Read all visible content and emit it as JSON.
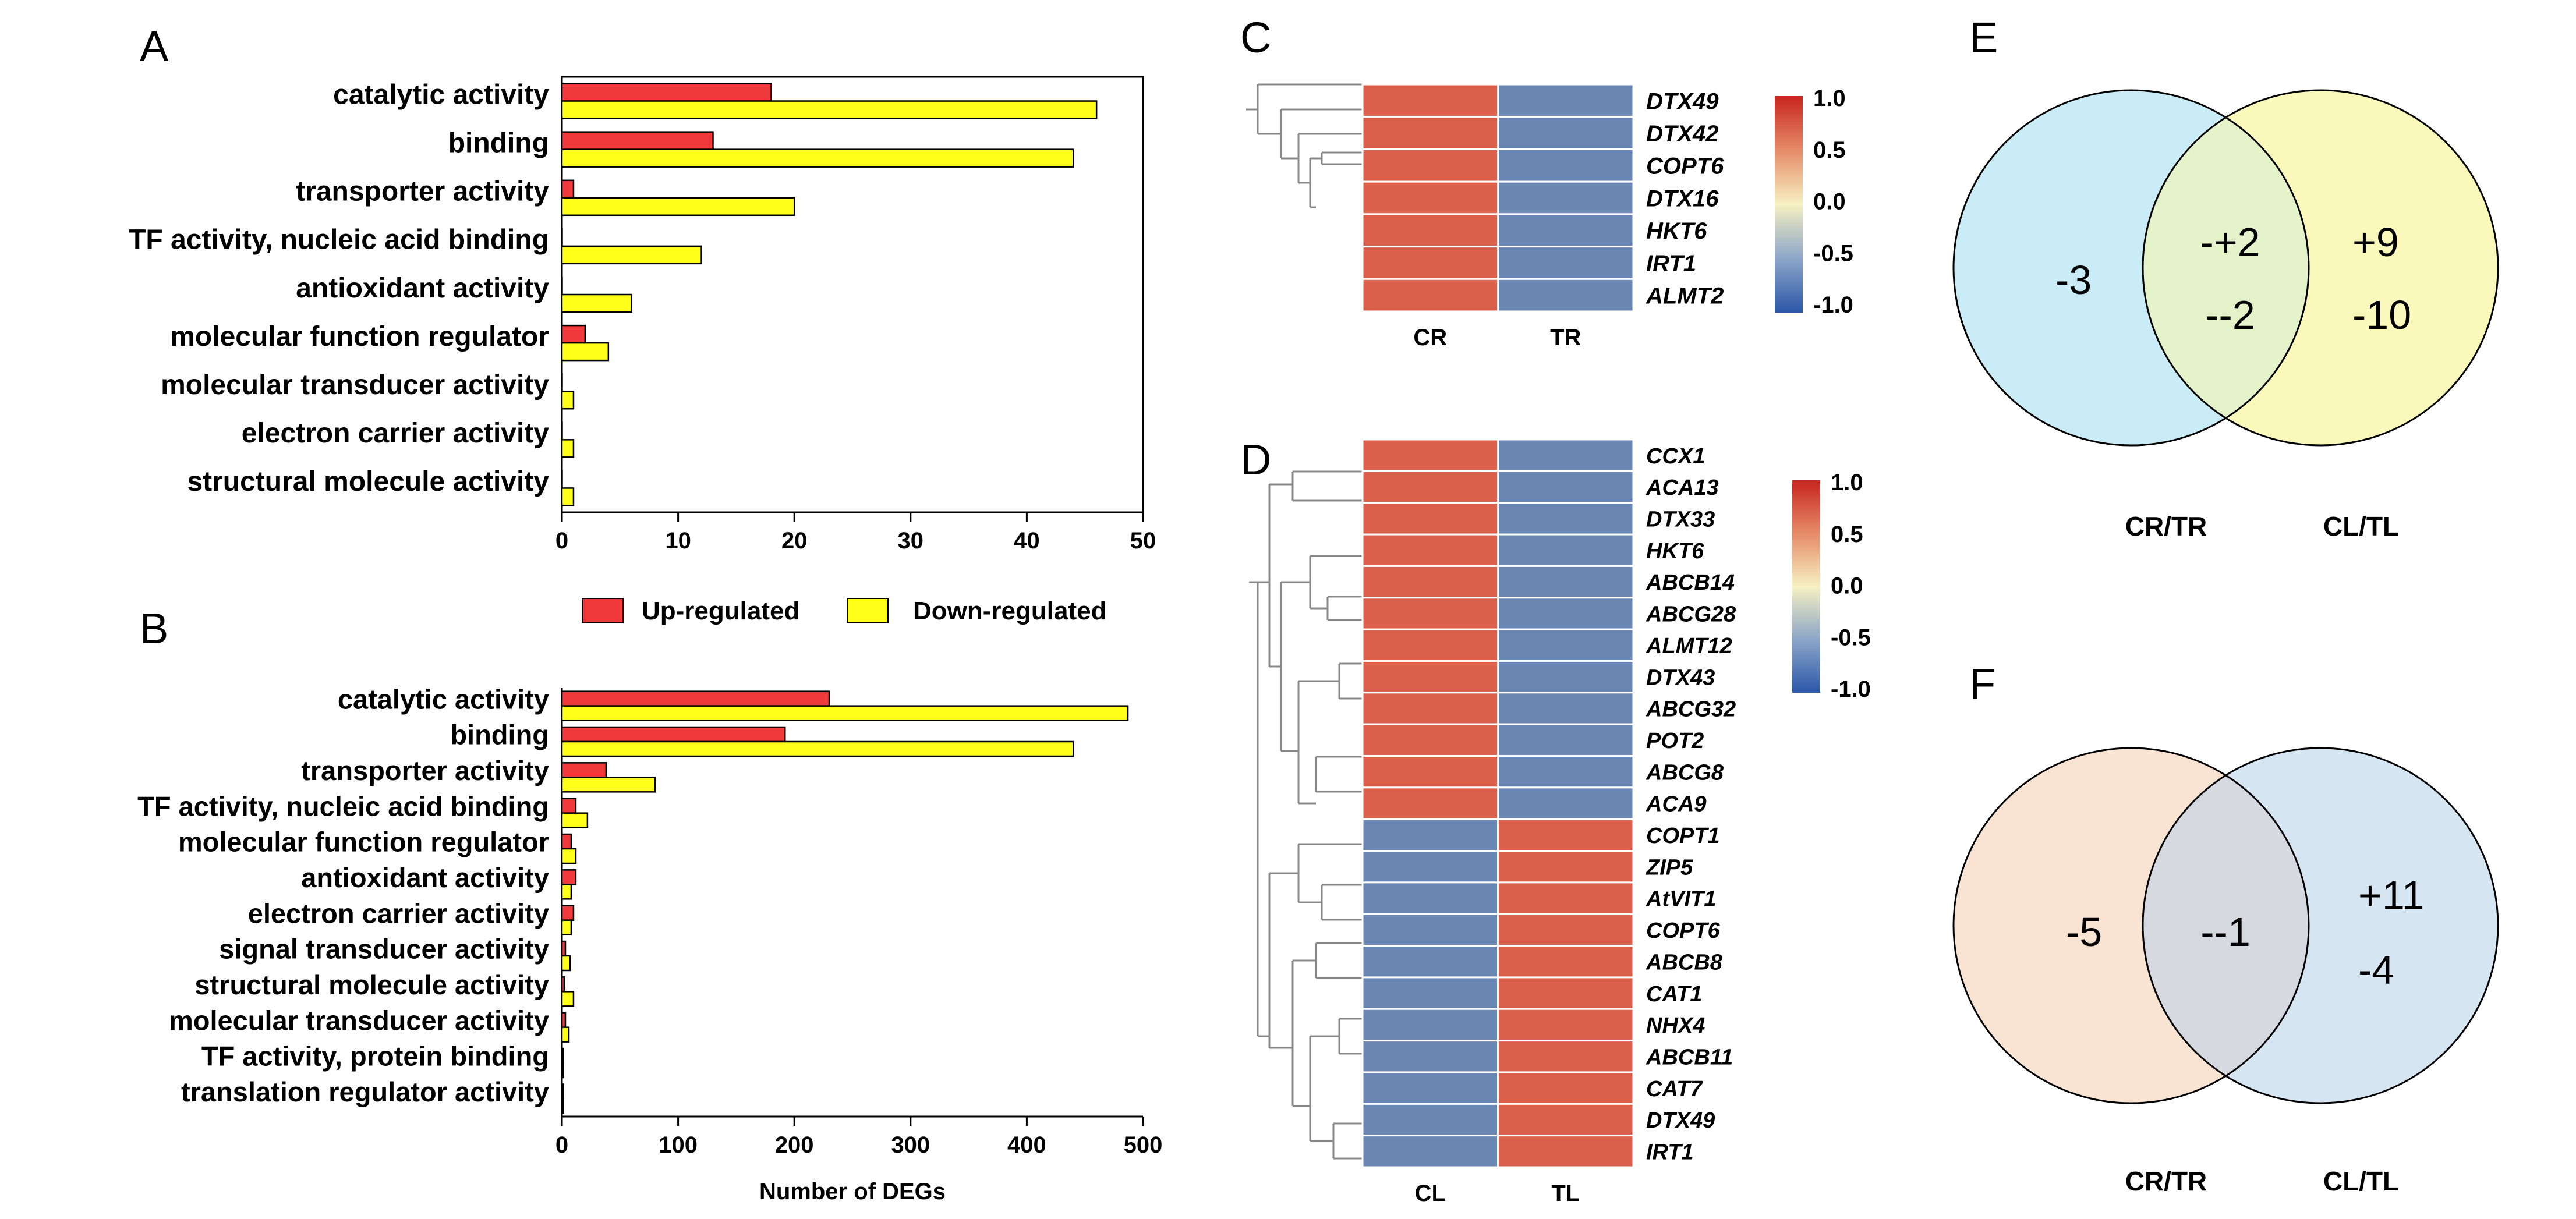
{
  "chart_data": [
    {
      "panel": "A",
      "type": "bar",
      "orientation": "horizontal",
      "categories": [
        "catalytic activity",
        "binding",
        "transporter activity",
        "TF activity, nucleic acid binding",
        "antioxidant activity",
        "molecular function regulator",
        "molecular transducer activity",
        "electron carrier activity",
        "structural molecule activity"
      ],
      "series": [
        {
          "name": "Up-regulated",
          "color": "#f0393b",
          "values": [
            18,
            13,
            1,
            0,
            0,
            2,
            0,
            0,
            0
          ]
        },
        {
          "name": "Down-regulated",
          "color": "#ffff1a",
          "values": [
            46,
            44,
            20,
            12,
            6,
            4,
            1,
            1,
            1
          ]
        }
      ],
      "xlim": [
        0,
        50
      ],
      "xticks": [
        "0",
        "10",
        "20",
        "30",
        "40",
        "50"
      ],
      "xlabel": "",
      "legend_position": "bottom"
    },
    {
      "panel": "B",
      "type": "bar",
      "orientation": "horizontal",
      "categories": [
        "catalytic activity",
        "binding",
        "transporter activity",
        "TF activity, nucleic acid binding",
        "molecular function regulator",
        "antioxidant activity",
        "electron carrier activity",
        "signal transducer activity",
        "structural molecule activity",
        "molecular transducer activity",
        "TF activity, protein binding",
        "translation regulator activity"
      ],
      "series": [
        {
          "name": "Up-regulated",
          "color": "#f0393b",
          "values": [
            230,
            192,
            38,
            12,
            8,
            12,
            10,
            3,
            2,
            3,
            1,
            1
          ]
        },
        {
          "name": "Down-regulated",
          "color": "#ffff1a",
          "values": [
            487,
            440,
            80,
            22,
            12,
            8,
            8,
            7,
            10,
            6,
            1,
            1
          ]
        }
      ],
      "xlim": [
        0,
        500
      ],
      "xticks": [
        "0",
        "100",
        "200",
        "300",
        "400",
        "500"
      ],
      "xlabel": "Number of DEGs"
    },
    {
      "panel": "C",
      "type": "heatmap",
      "columns": [
        "CR",
        "TR"
      ],
      "rows": [
        "DTX49",
        "DTX42",
        "COPT6",
        "DTX16",
        "HKT6",
        "IRT1",
        "ALMT2"
      ],
      "values": [
        [
          1,
          -1
        ],
        [
          1,
          -1
        ],
        [
          1,
          -1
        ],
        [
          1,
          -1
        ],
        [
          1,
          -1
        ],
        [
          1,
          -1
        ],
        [
          1,
          -1
        ]
      ],
      "colorbar_ticks": [
        "1.0",
        "0.5",
        "0.0",
        "-0.5",
        "-1.0"
      ],
      "colorbar_range": [
        -1,
        1
      ]
    },
    {
      "panel": "D",
      "type": "heatmap",
      "columns": [
        "CL",
        "TL"
      ],
      "rows": [
        "CCX1",
        "ACA13",
        "DTX33",
        "HKT6",
        "ABCB14",
        "ABCG28",
        "ALMT12",
        "DTX43",
        "ABCG32",
        "POT2",
        "ABCG8",
        "ACA9",
        "COPT1",
        "ZIP5",
        "AtVIT1",
        "COPT6",
        "ABCB8",
        "CAT1",
        "NHX4",
        "ABCB11",
        "CAT7",
        "DTX49",
        "IRT1"
      ],
      "values": [
        [
          1,
          -1
        ],
        [
          1,
          -1
        ],
        [
          1,
          -1
        ],
        [
          1,
          -1
        ],
        [
          1,
          -1
        ],
        [
          1,
          -1
        ],
        [
          1,
          -1
        ],
        [
          1,
          -1
        ],
        [
          1,
          -1
        ],
        [
          1,
          -1
        ],
        [
          1,
          -1
        ],
        [
          1,
          -1
        ],
        [
          -1,
          1
        ],
        [
          -1,
          1
        ],
        [
          -1,
          1
        ],
        [
          -1,
          1
        ],
        [
          -1,
          1
        ],
        [
          -1,
          1
        ],
        [
          -1,
          1
        ],
        [
          -1,
          1
        ],
        [
          -1,
          1
        ],
        [
          -1,
          1
        ],
        [
          -1,
          1
        ]
      ],
      "colorbar_ticks": [
        "1.0",
        "0.5",
        "0.0",
        "-0.5",
        "-1.0"
      ],
      "colorbar_range": [
        -1,
        1
      ]
    },
    {
      "panel": "E",
      "type": "venn",
      "sets": [
        "CR/TR",
        "CL/TL"
      ],
      "left_only": "-3",
      "overlap_up": "-+2",
      "overlap_down": "--2",
      "right_up": "+9",
      "right_down": "-10",
      "colors": {
        "left": "#c9ecf6",
        "right": "#fbf8bb",
        "overlap": "#e4f3ca"
      }
    },
    {
      "panel": "F",
      "type": "venn",
      "sets": [
        "CR/TR",
        "CL/TL"
      ],
      "left_only": "-5",
      "overlap": "--1",
      "right_up": "+11",
      "right_down": "-4",
      "colors": {
        "left": "#f9e3d3",
        "right": "#d6e5f2",
        "overlap": "#d7d9e0"
      }
    }
  ],
  "panel_letters": {
    "A": "A",
    "B": "B",
    "C": "C",
    "D": "D",
    "E": "E",
    "F": "F"
  },
  "legend": {
    "up_label": "Up-regulated",
    "down_label": "Down-regulated"
  },
  "heatmap_colors": {
    "high": "#db604b",
    "low": "#6a86b2",
    "mid": "#f6f0c2"
  }
}
